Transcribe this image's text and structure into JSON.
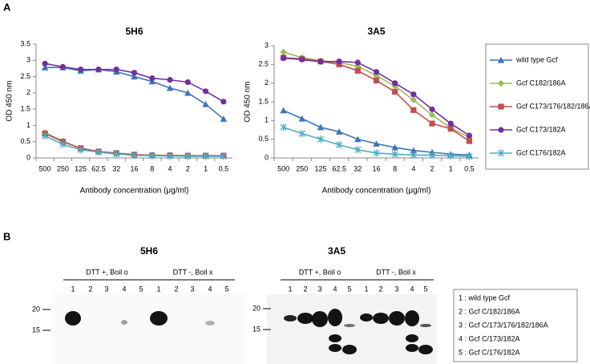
{
  "chart_data": [
    {
      "type": "line",
      "title": "5H6",
      "categories": [
        "500",
        "250",
        "125",
        "62.5",
        "32",
        "16",
        "8",
        "4",
        "2",
        "1",
        "0.5"
      ],
      "xlabel": "Antibody concentration (μg/ml)",
      "ylabel": "OD 450 nm",
      "ylim": [
        0,
        3.5
      ],
      "yticks": [
        0,
        0.5,
        1,
        1.5,
        2,
        2.5,
        3,
        3.5
      ],
      "series": [
        {
          "color": "#3a75b8",
          "marker": "triangle",
          "values": [
            2.78,
            2.78,
            2.68,
            2.72,
            2.65,
            2.5,
            2.35,
            2.15,
            2.0,
            1.65,
            1.2
          ]
        },
        {
          "color": "#9bbb59",
          "marker": "diamond",
          "values": [
            0.78,
            0.52,
            0.28,
            0.18,
            0.14,
            0.1,
            0.09,
            0.08,
            0.07,
            0.07,
            0.07
          ]
        },
        {
          "color": "#c0504d",
          "marker": "square",
          "values": [
            0.75,
            0.5,
            0.3,
            0.2,
            0.15,
            0.1,
            0.08,
            0.08,
            0.07,
            0.07,
            0.07
          ]
        },
        {
          "color": "#7030a0",
          "marker": "circle",
          "values": [
            2.9,
            2.8,
            2.72,
            2.72,
            2.72,
            2.62,
            2.45,
            2.4,
            2.33,
            2.05,
            1.73
          ]
        },
        {
          "color": "#4bacc6",
          "marker": "asterisk",
          "values": [
            0.68,
            0.42,
            0.25,
            0.18,
            0.12,
            0.08,
            0.07,
            0.06,
            0.05,
            0.05,
            0.05
          ]
        }
      ]
    },
    {
      "type": "line",
      "title": "3A5",
      "categories": [
        "500",
        "250",
        "125",
        "62.5",
        "32",
        "16",
        "8",
        "4",
        "2",
        "1",
        "0.5"
      ],
      "xlabel": "Antibody concentration (μg/ml)",
      "ylabel": "OD 450 nm",
      "ylim": [
        0,
        3
      ],
      "yticks": [
        0,
        0.5,
        1,
        1.5,
        2,
        2.5,
        3
      ],
      "legend": "right",
      "series": [
        {
          "name": "wild type Gcf",
          "color": "#3a75b8",
          "marker": "triangle",
          "values": [
            1.27,
            1.05,
            0.82,
            0.7,
            0.5,
            0.38,
            0.28,
            0.2,
            0.15,
            0.1,
            0.08
          ]
        },
        {
          "name": "Gcf C182/186A",
          "color": "#9bbb59",
          "marker": "diamond",
          "values": [
            2.83,
            2.68,
            2.6,
            2.55,
            2.45,
            2.2,
            1.92,
            1.55,
            1.15,
            0.8,
            0.55
          ]
        },
        {
          "name": "Gcf C173/176/182/186A",
          "color": "#c0504d",
          "marker": "square",
          "values": [
            2.68,
            2.65,
            2.58,
            2.5,
            2.33,
            2.07,
            1.77,
            1.28,
            0.92,
            0.78,
            0.45
          ]
        },
        {
          "name": "Gcf C173/182A",
          "color": "#7030a0",
          "marker": "circle",
          "values": [
            2.67,
            2.63,
            2.57,
            2.58,
            2.55,
            2.3,
            2.0,
            1.7,
            1.3,
            0.92,
            0.6
          ]
        },
        {
          "name": "Gcf C176/182A",
          "color": "#4bacc6",
          "marker": "asterisk",
          "values": [
            0.82,
            0.65,
            0.5,
            0.35,
            0.22,
            0.13,
            0.1,
            0.08,
            0.07,
            0.06,
            0.04
          ]
        }
      ]
    }
  ],
  "panels": [
    "A",
    "B"
  ],
  "blots": {
    "panels": [
      {
        "title": "5H6",
        "markers": [
          "20",
          "15"
        ],
        "groups": [
          {
            "label": "DTT +, Boil o",
            "lanes": [
              "1",
              "2",
              "3",
              "4",
              "5"
            ]
          },
          {
            "label": "DTT -, Boil x",
            "lanes": [
              "1",
              "2",
              "3",
              "4",
              "5"
            ]
          }
        ]
      },
      {
        "title": "3A5",
        "markers": [
          "20",
          "15"
        ],
        "groups": [
          {
            "label": "DTT +, Boil o",
            "lanes": [
              "1",
              "2",
              "3",
              "4",
              "5"
            ]
          },
          {
            "label": "DTT -, Boil x",
            "lanes": [
              "1",
              "2",
              "3",
              "4",
              "5"
            ]
          }
        ]
      }
    ],
    "key": [
      "1 :  wild type Gcf",
      "2 :  Gcf C/182/186A",
      "3 :  Gcf C/173/176/182/186A",
      "4 :  Gcf C/173/182A",
      "5 :  Gcf C/176/182A"
    ]
  }
}
